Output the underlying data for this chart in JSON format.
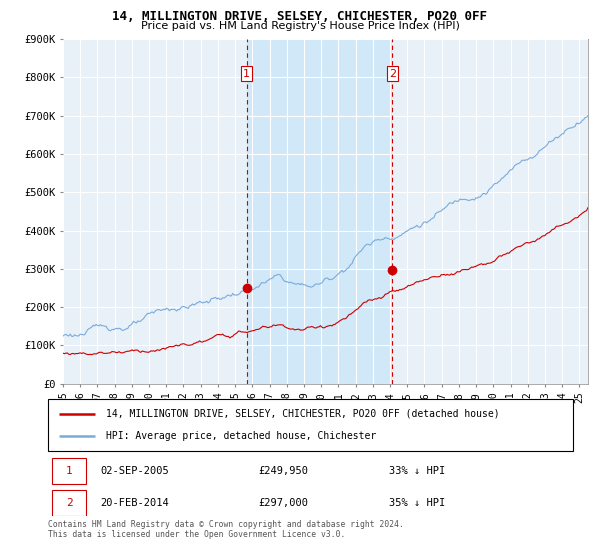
{
  "title": "14, MILLINGTON DRIVE, SELSEY, CHICHESTER, PO20 0FF",
  "subtitle": "Price paid vs. HM Land Registry's House Price Index (HPI)",
  "ylabel_ticks": [
    "£0",
    "£100K",
    "£200K",
    "£300K",
    "£400K",
    "£500K",
    "£600K",
    "£700K",
    "£800K",
    "£900K"
  ],
  "ylim": [
    0,
    900000
  ],
  "xlim_start": 1995.0,
  "xlim_end": 2025.5,
  "hpi_color": "#7aabdb",
  "price_color": "#cc0000",
  "marker_color": "#cc0000",
  "vline_color": "#cc0000",
  "shade_color": "#d0e8f8",
  "purchase1_date": 2005.67,
  "purchase1_price": 249950,
  "purchase1_label": "1",
  "purchase2_date": 2014.13,
  "purchase2_price": 297000,
  "purchase2_label": "2",
  "legend_address": "14, MILLINGTON DRIVE, SELSEY, CHICHESTER, PO20 0FF (detached house)",
  "legend_hpi": "HPI: Average price, detached house, Chichester",
  "table_row1_num": "1",
  "table_row1_date": "02-SEP-2005",
  "table_row1_price": "£249,950",
  "table_row1_hpi": "33% ↓ HPI",
  "table_row2_num": "2",
  "table_row2_date": "20-FEB-2014",
  "table_row2_price": "£297,000",
  "table_row2_hpi": "35% ↓ HPI",
  "footnote": "Contains HM Land Registry data © Crown copyright and database right 2024.\nThis data is licensed under the Open Government Licence v3.0.",
  "bg_color": "#e8f0f8",
  "plot_bg": "#ffffff",
  "grid_color": "#c8d0d8"
}
